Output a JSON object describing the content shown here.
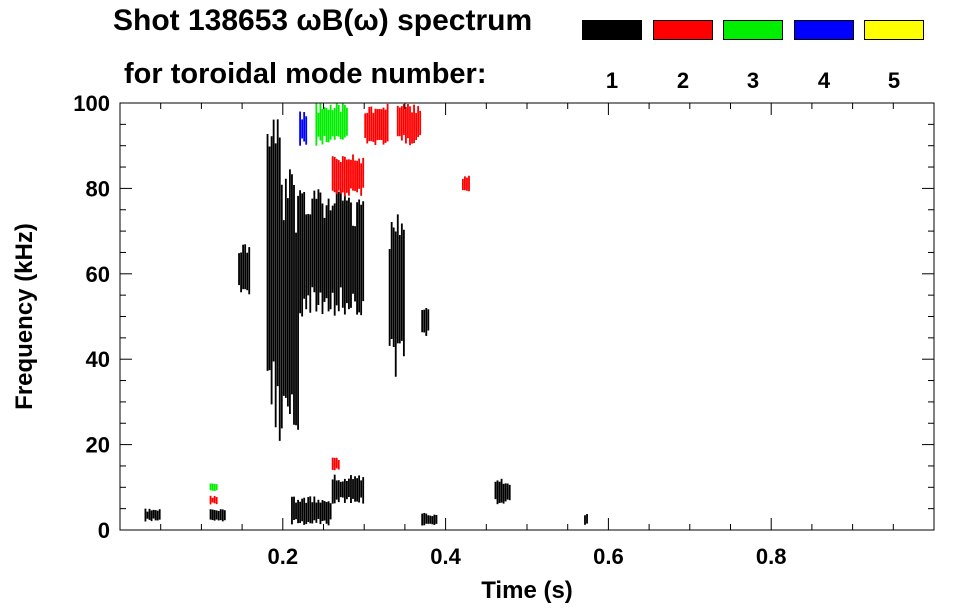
{
  "title_line1": "Shot 138653 ωB(ω) spectrum",
  "title_line2": "for toroidal mode number:",
  "legend": [
    {
      "mode": "1",
      "color": "#000000"
    },
    {
      "mode": "2",
      "color": "#ff0000"
    },
    {
      "mode": "3",
      "color": "#00ee00"
    },
    {
      "mode": "4",
      "color": "#0000ff"
    },
    {
      "mode": "5",
      "color": "#ffff00"
    }
  ],
  "chart_data": {
    "type": "heatmap",
    "xlabel": "Time (s)",
    "ylabel": "Frequency (kHz)",
    "xlim": [
      0.0,
      1.0
    ],
    "ylim": [
      0,
      100
    ],
    "xticks": [
      0.2,
      0.4,
      0.6,
      0.8
    ],
    "xtick_labels": [
      "0.2",
      "0.4",
      "0.6",
      "0.8"
    ],
    "yticks": [
      0,
      20,
      40,
      60,
      80,
      100
    ],
    "ytick_labels": [
      "0",
      "20",
      "40",
      "60",
      "80",
      "100"
    ],
    "grid": false,
    "legend_position": "top-right",
    "series": [
      {
        "name": "1",
        "color": "#000000",
        "regions": [
          {
            "t": [
              0.03,
              0.05
            ],
            "f": [
              2,
              5
            ]
          },
          {
            "t": [
              0.11,
              0.13
            ],
            "f": [
              2,
              5
            ]
          },
          {
            "t": [
              0.145,
              0.16
            ],
            "f": [
              55,
              68
            ]
          },
          {
            "t": [
              0.18,
              0.2
            ],
            "f": [
              20,
              98
            ]
          },
          {
            "t": [
              0.2,
              0.22
            ],
            "f": [
              22,
              85
            ]
          },
          {
            "t": [
              0.22,
              0.28
            ],
            "f": [
              50,
              80
            ]
          },
          {
            "t": [
              0.28,
              0.3
            ],
            "f": [
              50,
              78
            ]
          },
          {
            "t": [
              0.21,
              0.26
            ],
            "f": [
              1,
              8
            ]
          },
          {
            "t": [
              0.26,
              0.3
            ],
            "f": [
              6,
              13
            ]
          },
          {
            "t": [
              0.33,
              0.35
            ],
            "f": [
              35,
              75
            ]
          },
          {
            "t": [
              0.37,
              0.38
            ],
            "f": [
              45,
              52
            ]
          },
          {
            "t": [
              0.37,
              0.39
            ],
            "f": [
              1,
              4
            ]
          },
          {
            "t": [
              0.46,
              0.48
            ],
            "f": [
              6,
              12
            ]
          },
          {
            "t": [
              0.57,
              0.575
            ],
            "f": [
              1,
              4
            ]
          }
        ]
      },
      {
        "name": "2",
        "color": "#ff0000",
        "regions": [
          {
            "t": [
              0.11,
              0.12
            ],
            "f": [
              6,
              8
            ]
          },
          {
            "t": [
              0.26,
              0.3
            ],
            "f": [
              78,
              88
            ]
          },
          {
            "t": [
              0.3,
              0.33
            ],
            "f": [
              90,
              100
            ]
          },
          {
            "t": [
              0.34,
              0.37
            ],
            "f": [
              90,
              100
            ]
          },
          {
            "t": [
              0.42,
              0.43
            ],
            "f": [
              79,
              83
            ]
          },
          {
            "t": [
              0.26,
              0.27
            ],
            "f": [
              14,
              17
            ]
          }
        ]
      },
      {
        "name": "3",
        "color": "#00ee00",
        "regions": [
          {
            "t": [
              0.24,
              0.28
            ],
            "f": [
              90,
              100
            ]
          },
          {
            "t": [
              0.11,
              0.12
            ],
            "f": [
              9,
              11
            ]
          }
        ]
      },
      {
        "name": "4",
        "color": "#0000ff",
        "regions": [
          {
            "t": [
              0.22,
              0.23
            ],
            "f": [
              90,
              98
            ]
          }
        ]
      },
      {
        "name": "5",
        "color": "#ffff00",
        "regions": []
      }
    ]
  }
}
